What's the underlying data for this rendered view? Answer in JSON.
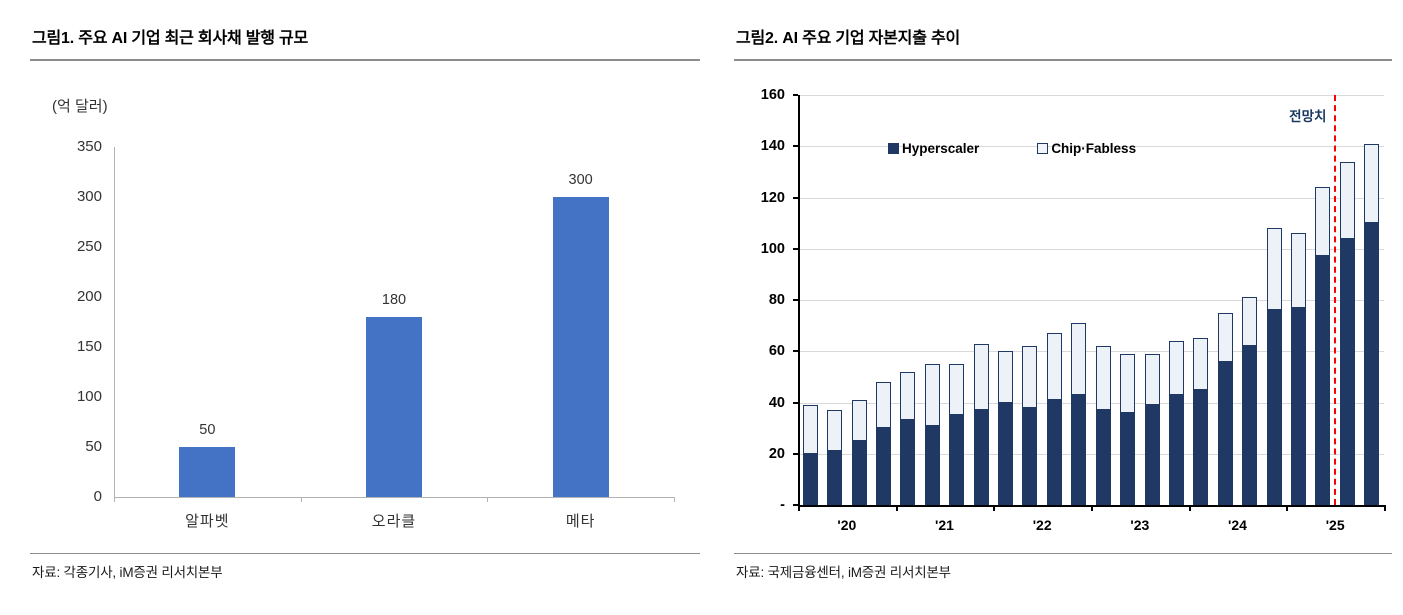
{
  "figures": [
    {
      "id": "figure1",
      "title": "그림1.  주요 AI 기업 최근 회사채 발행 규모",
      "source": "자료: 각종기사, iM증권 리서치본부"
    },
    {
      "id": "figure2",
      "title": "그림2.  AI 주요 기업 자본지출 추이",
      "source": "자료: 국제금융센터, iM증권 리서치본부"
    }
  ],
  "chart_data": [
    {
      "type": "bar",
      "title": "주요 AI 기업 최근 회사채 발행 규모",
      "unit_label": "(억 달러)",
      "categories": [
        "알파벳",
        "오라클",
        "메타"
      ],
      "values": [
        50,
        180,
        300
      ],
      "data_labels": [
        "50",
        "180",
        "300"
      ],
      "xlabel": "",
      "ylabel": "(억 달러)",
      "ylim": [
        0,
        350
      ],
      "ytick_step": 50,
      "bar_color": "#4472c4",
      "grid": false
    },
    {
      "type": "bar",
      "stacked": true,
      "title": "AI 주요 기업 자본지출 추이",
      "categories": [
        "'20",
        "'21",
        "'22",
        "'23",
        "'24",
        "'25"
      ],
      "quarters_per_year": 4,
      "series": [
        {
          "name": "Hyperscaler",
          "color": "#1f3864",
          "values": [
            20,
            21,
            25,
            30,
            33,
            31,
            35,
            37,
            40,
            38,
            41,
            43,
            37,
            36,
            39,
            43,
            45,
            56,
            62,
            76,
            77,
            97,
            104,
            110
          ]
        },
        {
          "name": "Chip·Fabless",
          "color": "#edf1f8",
          "values": [
            19,
            16,
            16,
            18,
            19,
            24,
            20,
            26,
            20,
            24,
            26,
            28,
            25,
            23,
            20,
            21,
            20,
            19,
            19,
            32,
            29,
            27,
            30,
            31
          ]
        }
      ],
      "totals": [
        39,
        37,
        41,
        48,
        52,
        55,
        55,
        63,
        60,
        62,
        67,
        71,
        62,
        59,
        59,
        64,
        65,
        75,
        81,
        108,
        106,
        124,
        134,
        141
      ],
      "ylim": [
        0,
        160
      ],
      "ytick_step": 20,
      "zero_tick_label": "-",
      "grid": true,
      "legend_position": "top-inside",
      "forecast": {
        "label": "전망치",
        "after_index": 21,
        "line_color": "#ff0000",
        "line_style": "dashed"
      }
    }
  ]
}
